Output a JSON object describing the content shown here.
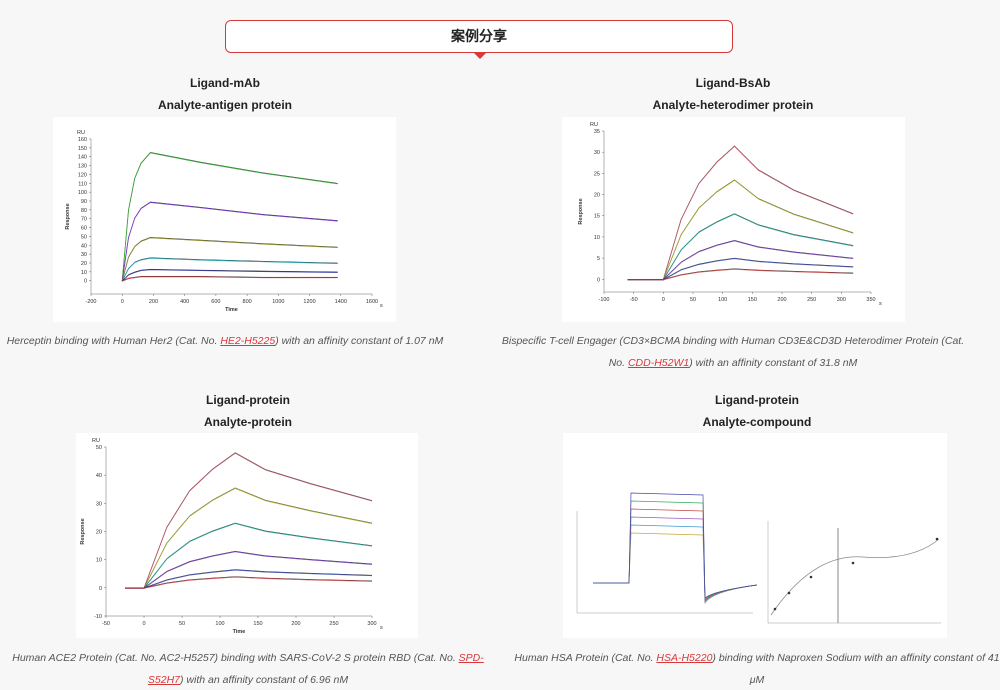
{
  "header": {
    "title": "案例分享"
  },
  "panels": [
    {
      "ligand": "Ligand-mAb",
      "analyte": "Analyte-antigen protein",
      "caption": {
        "before": "Herceptin binding with Human Her2 (Cat. No. ",
        "link": "HE2-H5225",
        "after": ") with an affinity constant of 1.07 nM"
      },
      "chart_data": {
        "type": "line",
        "y_unit": "RU",
        "ylabel": "Response",
        "xlabel": "Time",
        "x_unit": "s",
        "x": [
          0,
          40,
          80,
          120,
          180,
          500,
          900,
          1380
        ],
        "xlim": [
          -200,
          1600
        ],
        "xticks": [
          -200,
          0,
          200,
          400,
          600,
          800,
          1000,
          1200,
          1400,
          1600
        ],
        "ylim": [
          -15,
          160
        ],
        "yticks": [
          0,
          10,
          20,
          30,
          40,
          50,
          60,
          70,
          80,
          90,
          100,
          110,
          120,
          130,
          140,
          150,
          160
        ],
        "series": [
          {
            "color": "#3aa63a",
            "values": [
              0,
              80,
              116,
              133,
              145,
              134,
              122,
              110
            ]
          },
          {
            "color": "#7a3cc8",
            "values": [
              0,
              49,
              71,
              82,
              89,
              83,
              75,
              68
            ]
          },
          {
            "color": "#8a8a30",
            "values": [
              0,
              27,
              39,
              45,
              49,
              46,
              42,
              38
            ]
          },
          {
            "color": "#2a9fa8",
            "values": [
              0,
              14,
              21,
              24,
              26,
              24,
              22,
              20
            ]
          },
          {
            "color": "#3c3ca0",
            "values": [
              0,
              7,
              10,
              12,
              13,
              12,
              11,
              10
            ]
          },
          {
            "color": "#c83c3c",
            "values": [
              0,
              3,
              4,
              5,
              5,
              5,
              4,
              4
            ]
          }
        ]
      }
    },
    {
      "ligand": "Ligand-BsAb",
      "analyte": "Analyte-heterodimer protein",
      "caption": {
        "before": "Bispecific T-cell Engager (CD3×BCMA binding with Human CD3E&CD3D Heterodimer Protein (Cat. No. ",
        "link": "CDD-H52W1",
        "after": ") with an affinity constant of 31.8 nM"
      },
      "chart_data": {
        "type": "line",
        "y_unit": "RU",
        "ylabel": "Response",
        "x_unit": "s",
        "x": [
          -60,
          0,
          30,
          60,
          90,
          120,
          160,
          220,
          320
        ],
        "xlim": [
          -100,
          350
        ],
        "xticks": [
          -100,
          -50,
          0,
          50,
          100,
          150,
          200,
          250,
          300,
          350
        ],
        "ylim": [
          -3,
          35
        ],
        "yticks": [
          0,
          5,
          10,
          15,
          20,
          25,
          30,
          35
        ],
        "series": [
          {
            "color": "#b85a6a",
            "values": [
              0,
              0,
              14.2,
              22.7,
              27.7,
              31.5,
              25.9,
              21.1,
              15.5
            ]
          },
          {
            "color": "#a8a838",
            "values": [
              0,
              0,
              10.6,
              16.9,
              20.7,
              23.5,
              19.1,
              15.4,
              11
            ]
          },
          {
            "color": "#2aa090",
            "values": [
              0,
              0,
              7,
              11.2,
              13.6,
              15.5,
              12.9,
              10.6,
              8
            ]
          },
          {
            "color": "#7a48b8",
            "values": [
              0,
              0,
              4.1,
              6.6,
              8.1,
              9.2,
              7.7,
              6.5,
              5
            ]
          },
          {
            "color": "#4a5ab0",
            "values": [
              0,
              0,
              2.3,
              3.6,
              4.4,
              5,
              4.3,
              3.7,
              3
            ]
          },
          {
            "color": "#c85050",
            "values": [
              0,
              0,
              1.1,
              1.8,
              2.2,
              2.5,
              2.2,
              1.9,
              1.5
            ]
          }
        ]
      }
    },
    {
      "ligand": "Ligand-protein",
      "analyte": "Analyte-protein",
      "caption": {
        "before": "Human ACE2 Protein (Cat. No. AC2-H5257) binding with SARS-CoV-2 S protein RBD (Cat. No. ",
        "link": "SPD-S52H7",
        "after": ") with an affinity constant of 6.96 nM"
      },
      "chart_data": {
        "type": "line",
        "y_unit": "RU",
        "ylabel": "Response",
        "xlabel": "Time",
        "x_unit": "s",
        "x": [
          -25,
          0,
          30,
          60,
          90,
          120,
          160,
          220,
          300
        ],
        "xlim": [
          -50,
          300
        ],
        "xticks": [
          -50,
          0,
          50,
          100,
          150,
          200,
          250,
          300
        ],
        "ylim": [
          -10,
          50
        ],
        "yticks": [
          -10,
          0,
          10,
          20,
          30,
          40,
          50
        ],
        "series": [
          {
            "color": "#b85a6a",
            "values": [
              0,
              0,
              21.6,
              34.6,
              42.2,
              48,
              42,
              37,
              31
            ]
          },
          {
            "color": "#a8a838",
            "values": [
              0,
              0,
              16,
              25.6,
              31.2,
              35.5,
              31.1,
              27.4,
              23
            ]
          },
          {
            "color": "#2aa090",
            "values": [
              0,
              0,
              10.4,
              16.6,
              20.2,
              23,
              20.2,
              17.8,
              15
            ]
          },
          {
            "color": "#7a48b8",
            "values": [
              0,
              0,
              5.9,
              9.4,
              11.4,
              13,
              11.4,
              10.1,
              8.5
            ]
          },
          {
            "color": "#4a5ab0",
            "values": [
              0,
              0,
              2.9,
              4.7,
              5.7,
              6.5,
              5.8,
              5.2,
              4.5
            ]
          },
          {
            "color": "#c85050",
            "values": [
              0,
              0,
              1.8,
              2.9,
              3.5,
              4,
              3.5,
              3,
              2.5
            ]
          }
        ]
      }
    },
    {
      "ligand": "Ligand-protein",
      "analyte": "Analyte-compound",
      "caption": {
        "before": "Human HSA Protein (Cat. No. ",
        "link": "HSA-H5220",
        "after": ") binding with Naproxen Sodium with an affinity constant of 41 μM"
      }
    }
  ]
}
